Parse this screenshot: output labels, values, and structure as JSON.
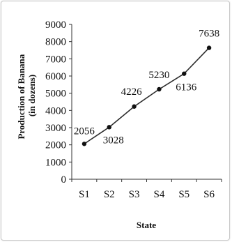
{
  "chart_data": {
    "type": "line",
    "title": "",
    "xlabel": "State",
    "ylabel": "Production of Banana",
    "ylabel_sub": "(in dozens)",
    "categories": [
      "S1",
      "S2",
      "S3",
      "S4",
      "S5",
      "S6"
    ],
    "series": [
      {
        "values": [
          2056,
          3028,
          4226,
          5230,
          6136,
          7638
        ]
      }
    ],
    "data_labels": [
      "2056",
      "3028",
      "4226",
      "5230",
      "6136",
      "7638"
    ],
    "y_ticks": [
      "0",
      "1000",
      "2000",
      "3000",
      "4000",
      "5000",
      "6000",
      "7000",
      "8000",
      "9000"
    ],
    "ylim": [
      0,
      9000
    ],
    "grid": false,
    "legend": "none",
    "colors": {
      "line": "#2b2b2b",
      "marker": "#111111",
      "axis": "#333333"
    }
  }
}
